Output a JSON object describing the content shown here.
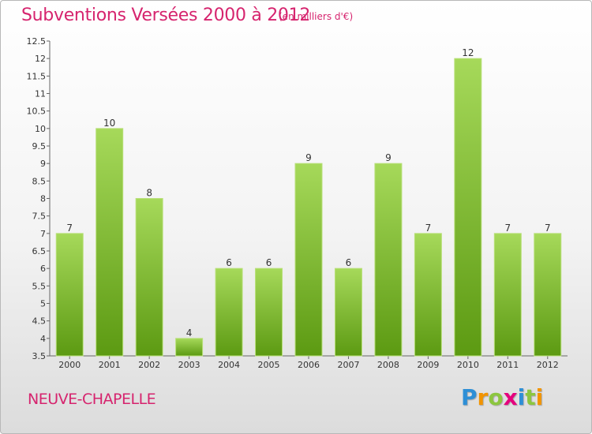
{
  "header": {
    "title": "Subventions Versées 2000 à 2012",
    "unit": "(en milliers d'€)"
  },
  "footer": {
    "commune": "NEUVE-CHAPELLE",
    "logo": {
      "letters": [
        "P",
        "r",
        "o",
        "x",
        "i",
        "t",
        "i"
      ],
      "colors": [
        "#2e8fd6",
        "#f29400",
        "#8cc63f",
        "#e5007d",
        "#2e8fd6",
        "#8cc63f",
        "#f29400"
      ]
    }
  },
  "colors": {
    "bar_light": "#a6d95a",
    "bar_dark": "#5c9a12",
    "title": "#d6246e",
    "axis": "#666666",
    "grid": "#cccccc"
  },
  "chart_data": {
    "type": "bar",
    "title": "Subventions Versées 2000 à 2012",
    "subtitle": "(en milliers d'€)",
    "xlabel": "",
    "ylabel": "",
    "categories": [
      "2000",
      "2001",
      "2002",
      "2003",
      "2004",
      "2005",
      "2006",
      "2007",
      "2008",
      "2009",
      "2010",
      "2011",
      "2012"
    ],
    "values": [
      7,
      10,
      8,
      4,
      6,
      6,
      9,
      6,
      9,
      7,
      12,
      7,
      7
    ],
    "ylim": [
      3.5,
      12.5
    ],
    "yticks": [
      "3.5",
      "4",
      "4.5",
      "5",
      "5.5",
      "6",
      "6.5",
      "7",
      "7.5",
      "8",
      "8.5",
      "9",
      "9.5",
      "10",
      "10.5",
      "11",
      "11.5",
      "12",
      "12.5"
    ],
    "grid": false,
    "legend": "none"
  }
}
